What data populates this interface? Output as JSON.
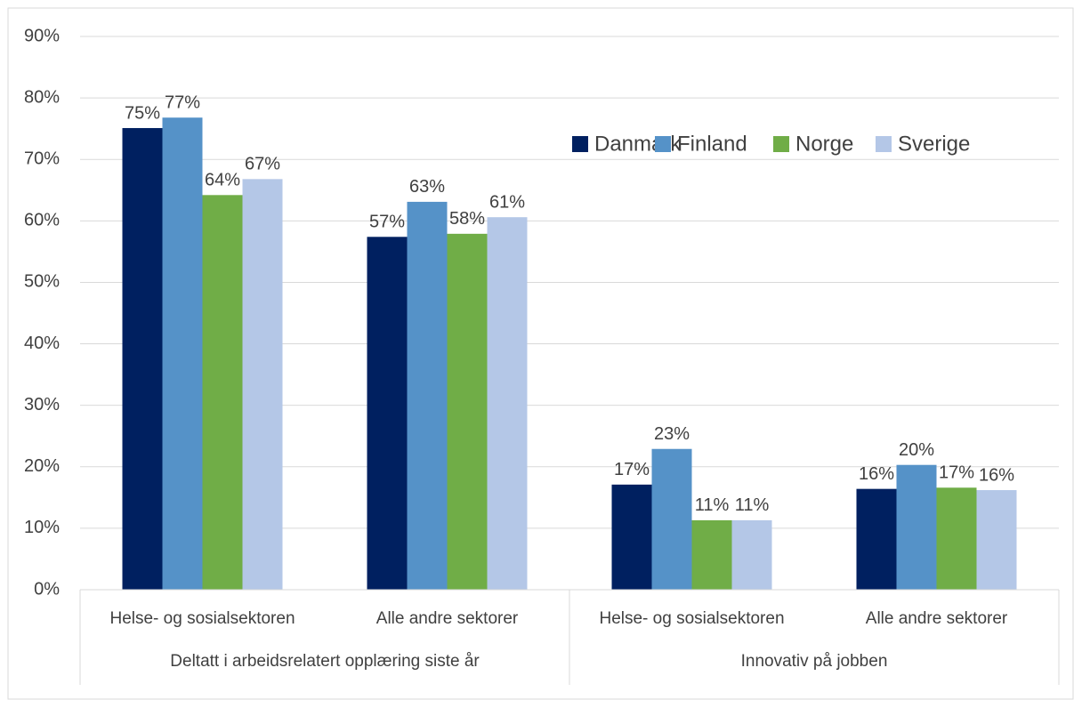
{
  "chart_data": {
    "type": "bar",
    "categories": [
      "Helse- og sosialsektoren",
      "Alle andre sektorer",
      "Helse- og sosialsektoren",
      "Alle andre sektorer"
    ],
    "category_groups": [
      "Deltatt i arbeidsrelatert opplæring siste år",
      "Innovativ på jobben"
    ],
    "series": [
      {
        "name": "Danmark",
        "color": "#002060",
        "values": [
          75.1,
          57.4,
          17.1,
          16.4
        ],
        "value_labels": [
          "75%",
          "57%",
          "17%",
          "16%"
        ]
      },
      {
        "name": "Finland",
        "color": "#5592c8",
        "values": [
          76.8,
          63.1,
          22.9,
          20.3
        ],
        "value_labels": [
          "77%",
          "63%",
          "23%",
          "20%"
        ]
      },
      {
        "name": "Norge",
        "color": "#70ad47",
        "values": [
          64.2,
          57.9,
          11.3,
          16.6
        ],
        "value_labels": [
          "64%",
          "58%",
          "11%",
          "17%"
        ]
      },
      {
        "name": "Sverige",
        "color": "#b4c7e7",
        "values": [
          66.8,
          60.6,
          11.3,
          16.2
        ],
        "value_labels": [
          "67%",
          "61%",
          "11%",
          "16%"
        ]
      }
    ],
    "ylim": [
      0,
      90
    ],
    "yticks": [
      {
        "value": 0,
        "label": "0%"
      },
      {
        "value": 10,
        "label": "10%"
      },
      {
        "value": 20,
        "label": "20%"
      },
      {
        "value": 30,
        "label": "30%"
      },
      {
        "value": 40,
        "label": "40%"
      },
      {
        "value": 50,
        "label": "50%"
      },
      {
        "value": 60,
        "label": "60%"
      },
      {
        "value": 70,
        "label": "70%"
      },
      {
        "value": 80,
        "label": "80%"
      },
      {
        "value": 90,
        "label": "90%"
      }
    ],
    "grid": true,
    "legend": "top-right"
  }
}
